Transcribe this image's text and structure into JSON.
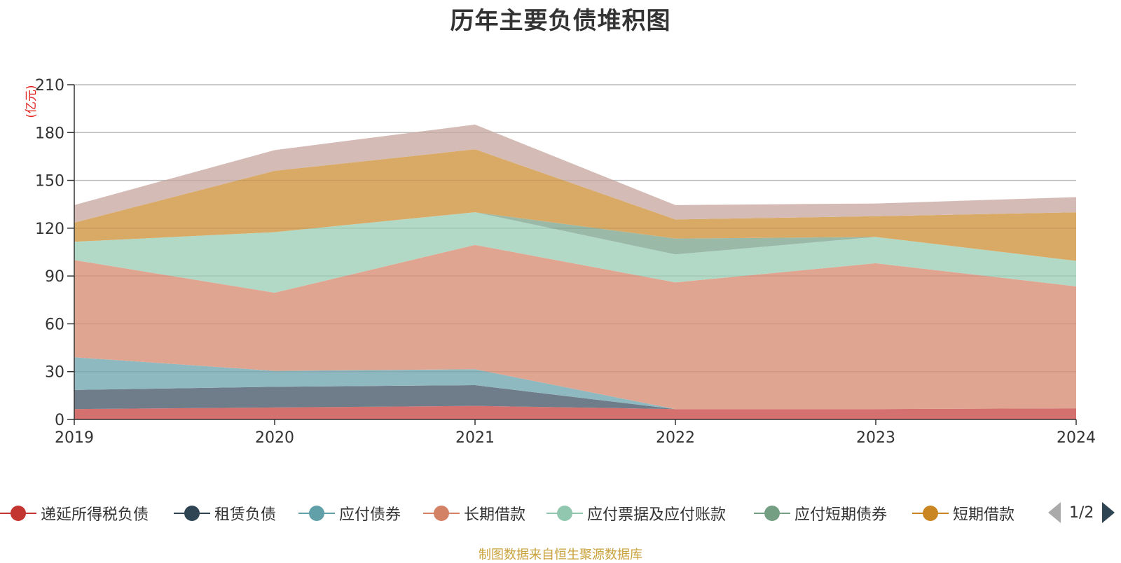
{
  "chart_data": {
    "type": "area",
    "title": "历年主要负债堆积图",
    "unit_label": "(亿元)",
    "categories": [
      "2019",
      "2020",
      "2021",
      "2022",
      "2023",
      "2024"
    ],
    "ylim": [
      0,
      210
    ],
    "yticks": [
      0,
      30,
      60,
      90,
      120,
      150,
      180,
      210
    ],
    "grid": true,
    "stacked": true,
    "legend_position": "bottom",
    "series": [
      {
        "name": "递延所得税负债",
        "color": "#d4706e",
        "values": [
          6.5,
          7.5,
          8.5,
          6.5,
          6.5,
          7
        ]
      },
      {
        "name": "租赁负债",
        "color": "#6f7c8a",
        "values": [
          12,
          13,
          13,
          0,
          0,
          0
        ]
      },
      {
        "name": "应付债券",
        "color": "#8fb9c0",
        "values": [
          20.5,
          10,
          10,
          0,
          0,
          0
        ]
      },
      {
        "name": "长期借款",
        "color": "#e0a590",
        "values": [
          61,
          49,
          78,
          79.5,
          91.5,
          76.5
        ]
      },
      {
        "name": "应付票据及应付账款",
        "color": "#b1d9c6",
        "values": [
          11.5,
          38,
          20.5,
          17.5,
          16.5,
          16
        ]
      },
      {
        "name": "应付短期债券",
        "color": "#9bb9a7",
        "values": [
          0,
          0,
          0,
          10,
          0,
          0
        ]
      },
      {
        "name": "短期借款",
        "color": "#d9aa65",
        "values": [
          12,
          38.5,
          39.5,
          12,
          13,
          30.5
        ]
      },
      {
        "name": "",
        "color": "#d4bbb6",
        "values": [
          11,
          13,
          15.5,
          9,
          8,
          9.5
        ]
      }
    ]
  },
  "legend": {
    "items": [
      {
        "label": "递延所得税负债",
        "color": "#c23531"
      },
      {
        "label": "租赁负债",
        "color": "#2f4554"
      },
      {
        "label": "应付债券",
        "color": "#61a0a8"
      },
      {
        "label": "长期借款",
        "color": "#d48265"
      },
      {
        "label": "应付票据及应付账款",
        "color": "#91c7ae"
      },
      {
        "label": "应付短期债券",
        "color": "#749f83"
      },
      {
        "label": "短期借款",
        "color": "#ca8622"
      }
    ],
    "page_indicator": "1/2"
  },
  "source_note": "制图数据来自恒生聚源数据库"
}
